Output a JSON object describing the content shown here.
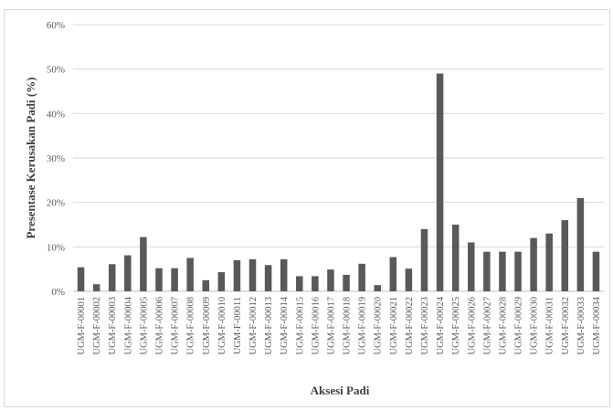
{
  "chart_data": {
    "type": "bar",
    "xlabel": "Aksesi Padi",
    "ylabel": "Presentase Kerusakan Padi (%)",
    "ylim": [
      0,
      60
    ],
    "yticks": [
      "0%",
      "10%",
      "20%",
      "30%",
      "40%",
      "50%",
      "60%"
    ],
    "grid": true,
    "bar_color": "#595959",
    "categories": [
      "UGM-F-00001",
      "UGM-F-00002",
      "UGM-F-00003",
      "UGM-F-00004",
      "UGM-F-00005",
      "UGM-F-00006",
      "UGM-F-00007",
      "UGM-F-00008",
      "UGM-F-00009",
      "UGM-F-00010",
      "UGM-F-00011",
      "UGM-F-00012",
      "UGM-F-00013",
      "UGM-F-00014",
      "UGM-F-00015",
      "UGM-F-00016",
      "UGM-F-00017",
      "UGM-F-00018",
      "UGM-F-00019",
      "UGM-F-00020",
      "UGM-F-00021",
      "UGM-F-00022",
      "UGM-F-00023",
      "UGM-F-00024",
      "UGM-F-00025",
      "UGM-F-00026",
      "UGM-F-00027",
      "UGM-F-00028",
      "UGM-F-00029",
      "UGM-F-00030",
      "UGM-F-00031",
      "UGM-F-00032",
      "UGM-F-00033",
      "UGM-F-00034"
    ],
    "values": [
      5.4,
      1.6,
      6.1,
      8.1,
      12.2,
      5.2,
      5.2,
      7.5,
      2.5,
      4.3,
      7.0,
      7.2,
      5.9,
      7.2,
      3.4,
      3.4,
      4.9,
      3.7,
      6.2,
      1.4,
      7.7,
      5.1,
      14.0,
      49.0,
      15.0,
      11.0,
      8.9,
      8.9,
      8.9,
      12.0,
      13.0,
      16.0,
      21.0,
      8.9
    ]
  }
}
